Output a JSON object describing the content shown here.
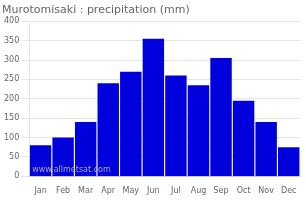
{
  "chart_data": {
    "type": "bar",
    "title": "Murotomisaki : precipitation (mm)",
    "categories": [
      "Jan",
      "Feb",
      "Mar",
      "Apr",
      "May",
      "Jun",
      "Jul",
      "Aug",
      "Sep",
      "Oct",
      "Nov",
      "Dec"
    ],
    "values": [
      80,
      100,
      140,
      240,
      270,
      355,
      260,
      235,
      305,
      195,
      140,
      75
    ],
    "color": "#0000dd",
    "ylim": [
      0,
      400
    ],
    "yticks": [
      0,
      50,
      100,
      150,
      200,
      250,
      300,
      350,
      400
    ],
    "grid": true,
    "annotation": "www.allmetsat.com"
  }
}
